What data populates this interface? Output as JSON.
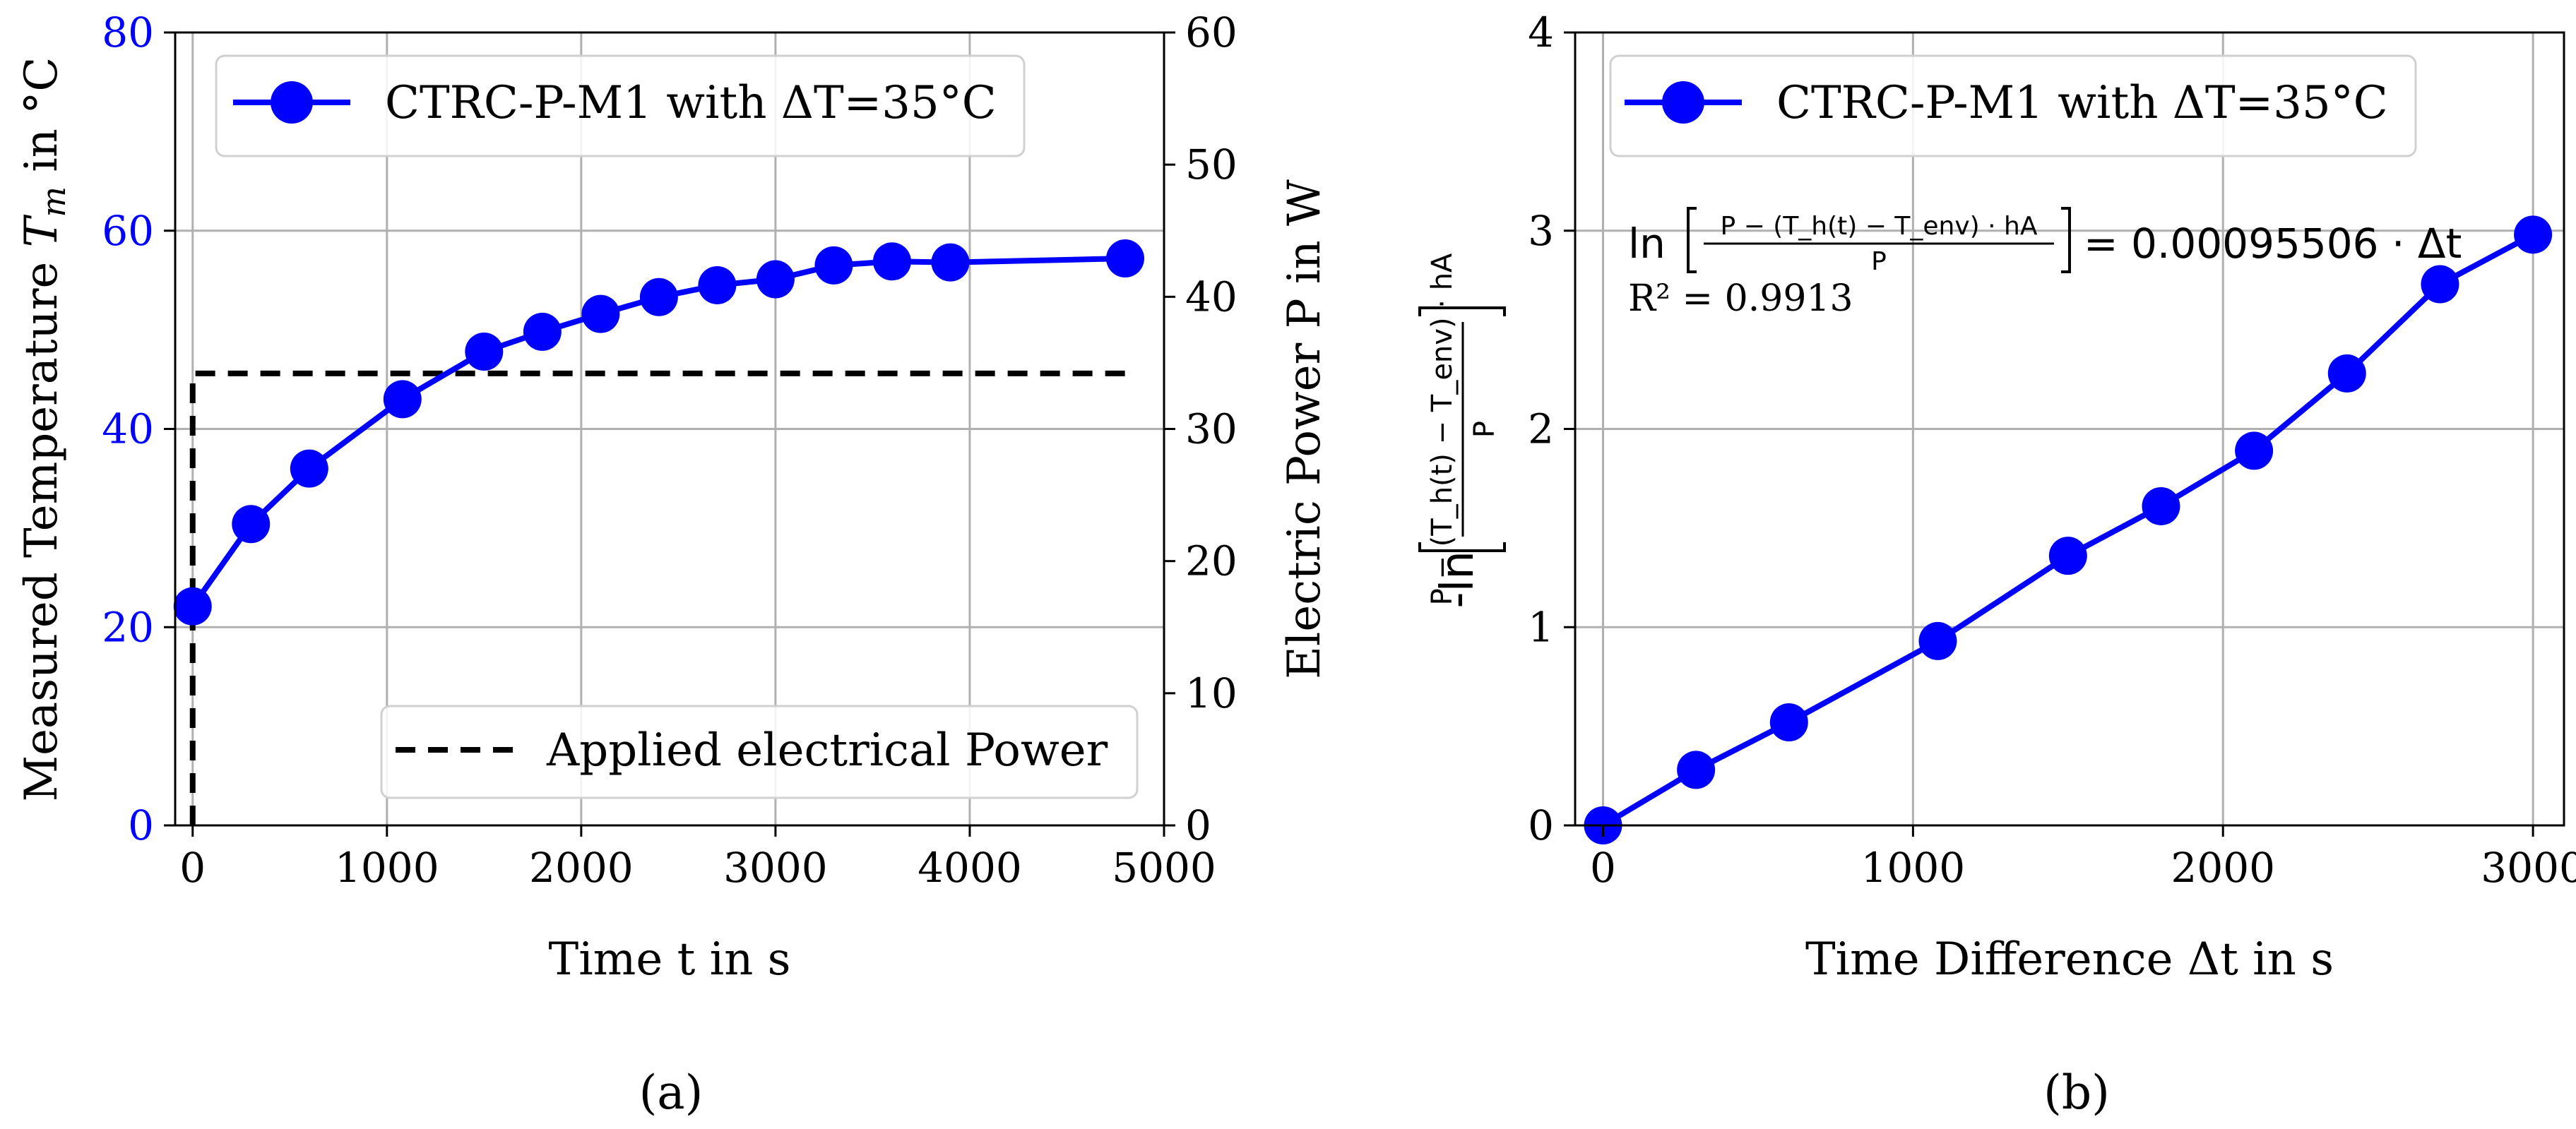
{
  "chart_data": [
    {
      "type": "line",
      "xlabel": "Time t in s",
      "ylabel_left": "Measured Temperature T_m in °C",
      "ylabel_right": "Electric Power P in W",
      "caption": "(a)",
      "xlim": [
        -90,
        5000
      ],
      "ylim_left": [
        0,
        80
      ],
      "ylim_right": [
        0,
        60
      ],
      "x_ticks": [
        "0",
        "1000",
        "2000",
        "3000",
        "4000",
        "5000"
      ],
      "y_left_ticks": [
        "0",
        "20",
        "40",
        "60",
        "80"
      ],
      "y_right_ticks": [
        "0",
        "10",
        "20",
        "30",
        "40",
        "50",
        "60"
      ],
      "grid": true,
      "series": [
        {
          "name": "CTRC-P-M1 with ΔT=35°C",
          "legend_label": "CTRC-P-M1 with ΔT=35°C",
          "axis": "left",
          "color": "#0000ff",
          "x": [
            0,
            300,
            600,
            1080,
            1500,
            1800,
            2100,
            2400,
            2700,
            3000,
            3300,
            3600,
            3900,
            4800
          ],
          "y": [
            22.1,
            30.4,
            36.0,
            43.0,
            47.8,
            49.8,
            51.6,
            53.3,
            54.5,
            55.1,
            56.5,
            56.9,
            56.8,
            57.2
          ]
        },
        {
          "name": "Applied electrical Power",
          "legend_label": "Applied electrical Power",
          "axis": "right",
          "color": "#000000",
          "style": "dashed",
          "x": [
            0,
            0,
            4800
          ],
          "y": [
            0,
            34.2,
            34.2
          ]
        }
      ],
      "legend": [
        "top-left",
        "bottom-right"
      ]
    },
    {
      "type": "line",
      "xlabel": "Time Difference Δt in s",
      "ylabel": "-ln[(P − (T_h(t) − T_env)·hA) / P]",
      "caption": "(b)",
      "xlim": [
        -90,
        3100
      ],
      "ylim": [
        0,
        4
      ],
      "x_ticks": [
        "0",
        "1000",
        "2000",
        "3000"
      ],
      "y_ticks": [
        "0",
        "1",
        "2",
        "3",
        "4"
      ],
      "grid": true,
      "series": [
        {
          "name": "CTRC-P-M1 with ΔT=35°C",
          "legend_label": "CTRC-P-M1 with ΔT=35°C",
          "color": "#0000ff",
          "x": [
            0,
            300,
            600,
            1080,
            1500,
            1800,
            2100,
            2400,
            2700,
            3000
          ],
          "y": [
            0.0,
            0.28,
            0.52,
            0.93,
            1.36,
            1.61,
            1.89,
            2.28,
            2.73,
            2.98
          ]
        }
      ],
      "legend": "top-left",
      "annotation": {
        "fit_rhs": "= 0.00095506 · Δt",
        "r2": "R² = 0.9913",
        "num": "P − (T_h(t) − T_env) · hA",
        "den": "P",
        "ln": "ln"
      },
      "ylabel_parts": {
        "prefix": "-ln",
        "num": "P − (T_h(t) − T_env) · hA",
        "den": "P"
      }
    }
  ],
  "labels": {
    "a_ylabel_text": "Measured Temperature ",
    "a_ylabel_math": "T",
    "a_ylabel_sub": "m",
    "a_ylabel_unit": " in °C"
  }
}
